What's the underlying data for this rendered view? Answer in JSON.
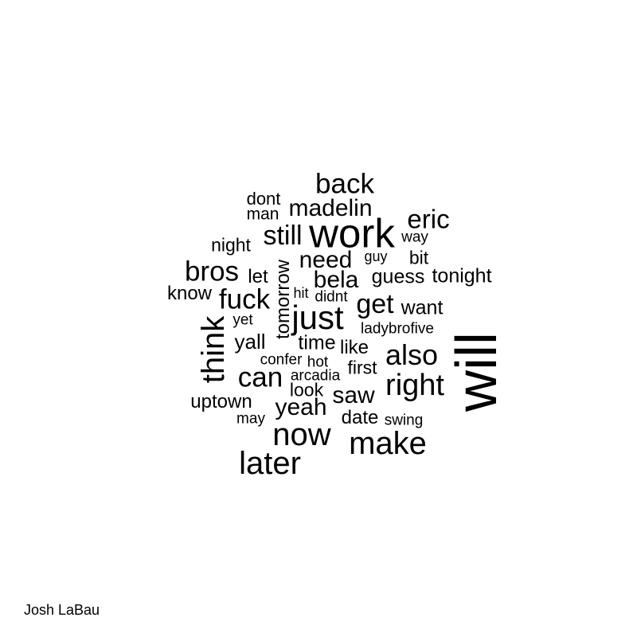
{
  "words": {
    "will": "will",
    "work": "work",
    "back": "back",
    "eric": "eric",
    "madelin": "madelin",
    "dont": "dont",
    "man": "man",
    "still": "still",
    "way": "way",
    "night": "night",
    "guy": "guy",
    "bit": "bit",
    "need": "need",
    "bros": "bros",
    "tomorrow": "tomorrow",
    "let": "let",
    "bela": "bela",
    "guess": "guess",
    "tonight": "tonight",
    "know": "know",
    "hit": "hit",
    "didnt": "didnt",
    "fuck": "fuck",
    "get": "get",
    "want": "want",
    "think": "think",
    "yet": "yet",
    "just": "just",
    "ladybrofive": "ladybrofive",
    "yall": "yall",
    "time": "time",
    "like": "like",
    "also": "also",
    "confer": "confer",
    "hot": "hot",
    "first": "first",
    "can": "can",
    "arcadia": "arcadia",
    "right": "right",
    "look": "look",
    "saw": "saw",
    "uptown": "uptown",
    "yeah": "yeah",
    "may": "may",
    "date": "date",
    "swing": "swing",
    "now": "now",
    "make": "make",
    "later": "later"
  },
  "caption": "Josh LaBau"
}
